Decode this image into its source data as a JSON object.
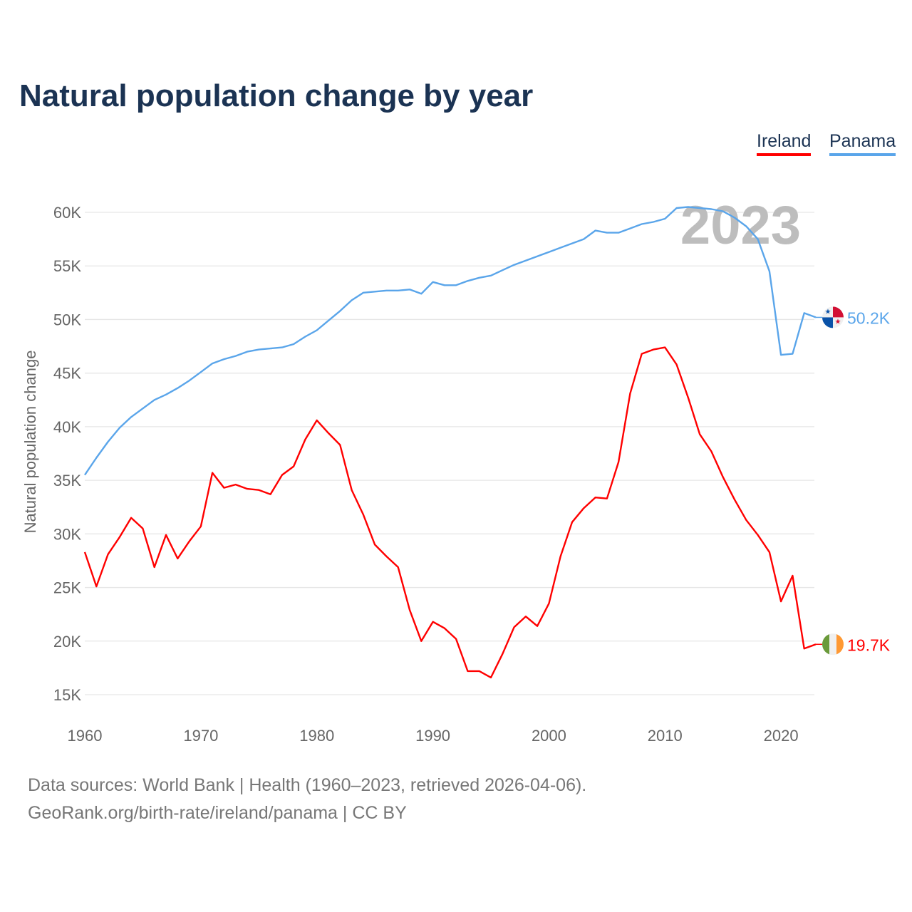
{
  "title": "Natural population change by year",
  "footer": {
    "line1": "Data sources: World Bank | Health (1960–2023, retrieved 2026-04-06).",
    "line2": "GeoRank.org/birth-rate/ireland/panama | CC BY"
  },
  "chart_data": {
    "type": "line",
    "title": "Natural population change by year",
    "xlabel": "",
    "ylabel": "Natural population change",
    "year_watermark": "2023",
    "ylim": [
      15000,
      60000
    ],
    "xlim": [
      1960,
      2023
    ],
    "yticks": [
      15000,
      20000,
      25000,
      30000,
      35000,
      40000,
      45000,
      50000,
      55000,
      60000
    ],
    "ytick_labels": [
      "15K",
      "20K",
      "25K",
      "30K",
      "35K",
      "40K",
      "45K",
      "50K",
      "55K",
      "60K"
    ],
    "xticks": [
      1960,
      1970,
      1980,
      1990,
      2000,
      2010,
      2020
    ],
    "xtick_labels": [
      "1960",
      "1970",
      "1980",
      "1990",
      "2000",
      "2010",
      "2020"
    ],
    "grid": true,
    "legend_position": "top-right",
    "x": [
      1960,
      1961,
      1962,
      1963,
      1964,
      1965,
      1966,
      1967,
      1968,
      1969,
      1970,
      1971,
      1972,
      1973,
      1974,
      1975,
      1976,
      1977,
      1978,
      1979,
      1980,
      1981,
      1982,
      1983,
      1984,
      1985,
      1986,
      1987,
      1988,
      1989,
      1990,
      1991,
      1992,
      1993,
      1994,
      1995,
      1996,
      1997,
      1998,
      1999,
      2000,
      2001,
      2002,
      2003,
      2004,
      2005,
      2006,
      2007,
      2008,
      2009,
      2010,
      2011,
      2012,
      2013,
      2014,
      2015,
      2016,
      2017,
      2018,
      2019,
      2020,
      2021,
      2022,
      2023
    ],
    "series": [
      {
        "name": "Ireland",
        "color": "#ff0000",
        "end_label": "19.7K",
        "flag": "ireland-flag",
        "values": [
          28300,
          25100,
          28100,
          29700,
          31500,
          30500,
          26900,
          29900,
          27700,
          29300,
          30700,
          35700,
          34300,
          34600,
          34200,
          34100,
          33700,
          35500,
          36300,
          38800,
          40600,
          39400,
          38300,
          34100,
          31800,
          29000,
          27900,
          26900,
          22900,
          20000,
          21800,
          21200,
          20200,
          17200,
          17200,
          16600,
          18800,
          21300,
          22300,
          21400,
          23500,
          27900,
          31100,
          32400,
          33400,
          33300,
          36700,
          43100,
          46800,
          47200,
          47400,
          45800,
          42700,
          39300,
          37700,
          35300,
          33200,
          31300,
          29900,
          28300,
          23700,
          26100,
          19300,
          19700
        ]
      },
      {
        "name": "Panama",
        "color": "#5aa5ea",
        "end_label": "50.2K",
        "flag": "panama-flag",
        "values": [
          35500,
          37100,
          38600,
          39900,
          40900,
          41700,
          42500,
          43000,
          43600,
          44300,
          45100,
          45900,
          46300,
          46600,
          47000,
          47200,
          47300,
          47400,
          47700,
          48400,
          49000,
          49900,
          50800,
          51800,
          52500,
          52600,
          52700,
          52700,
          52800,
          52400,
          53500,
          53200,
          53200,
          53600,
          53900,
          54100,
          54600,
          55100,
          55500,
          55900,
          56300,
          56700,
          57100,
          57500,
          58300,
          58100,
          58100,
          58500,
          58900,
          59100,
          59400,
          60400,
          60500,
          60400,
          60300,
          60100,
          59500,
          58700,
          57500,
          54500,
          46700,
          46800,
          50600,
          50200
        ]
      }
    ]
  }
}
